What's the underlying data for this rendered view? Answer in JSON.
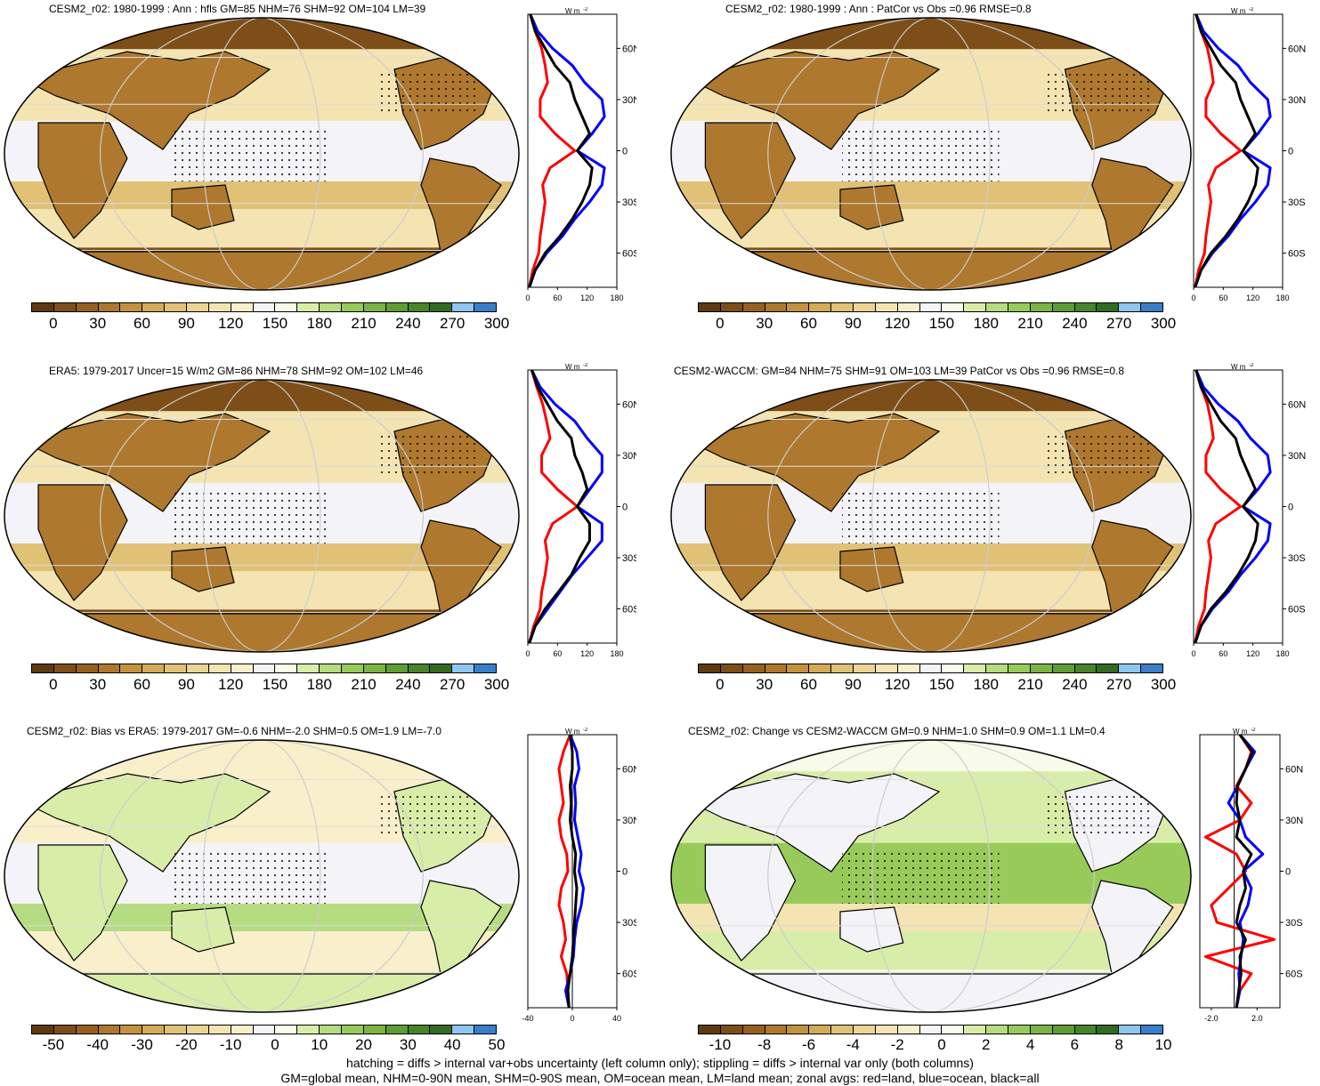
{
  "panels": [
    {
      "title": "CESM2_r02: 1980-1999 : Ann : hfls GM=85 NHM=76 SHM=92 OM=104 LM=39"
    },
    {
      "title": "CESM2_r02: 1980-1999 : Ann : PatCor vs Obs =0.96 RMSE=0.8"
    },
    {
      "title": "ERA5: 1979-2017 Uncer=15 W/m2 GM=86 NHM=78 SHM=92 OM=102 LM=46"
    },
    {
      "title": "CESM2-WACCM: GM=84 NHM=75 SHM=91 OM=103 LM=39 PatCor vs Obs =0.96 RMSE=0.8"
    },
    {
      "title": "CESM2_r02: Bias vs ERA5: 1979-2017 GM=-0.6 NHM=-2.0 SHM=0.5 OM=1.9 LM=-7.0"
    },
    {
      "title": "CESM2_r02: Change vs CESM2-WACCM GM=0.9 NHM=1.0 SHM=0.9 OM=1.1 LM=0.4"
    }
  ],
  "colorbars": {
    "absolute": {
      "labels": [
        "0",
        "30",
        "60",
        "90",
        "120",
        "150",
        "180",
        "210",
        "240",
        "270",
        "300"
      ],
      "colors": [
        "#5e3a10",
        "#7d4e18",
        "#96611f",
        "#ae782e",
        "#c3923f",
        "#d3aa57",
        "#e0c175",
        "#ebd595",
        "#f3e4b1",
        "#f9efcb",
        "#f4f4f8",
        "#f8fbe9",
        "#d8eda8",
        "#b5dc80",
        "#98ca5a",
        "#7cb443",
        "#5f9c35",
        "#47842a",
        "#336b22",
        "#8fc6f0",
        "#3a7ec8"
      ]
    },
    "bias": {
      "labels": [
        "-50",
        "-40",
        "-30",
        "-20",
        "-10",
        "0",
        "10",
        "20",
        "30",
        "40",
        "50"
      ],
      "colors": [
        "#5e3a10",
        "#7d4e18",
        "#96611f",
        "#ae782e",
        "#c3923f",
        "#d3aa57",
        "#e0c175",
        "#ebd595",
        "#f3e4b1",
        "#f9efcb",
        "#f4f4f8",
        "#f8fbe9",
        "#d8eda8",
        "#b5dc80",
        "#98ca5a",
        "#7cb443",
        "#5f9c35",
        "#47842a",
        "#336b22",
        "#8fc6f0",
        "#3a7ec8"
      ]
    },
    "change": {
      "labels": [
        "-10",
        "-8",
        "-6",
        "-4",
        "-2",
        "0",
        "2",
        "4",
        "6",
        "8",
        "10"
      ],
      "colors": [
        "#5e3a10",
        "#7d4e18",
        "#96611f",
        "#ae782e",
        "#c3923f",
        "#d3aa57",
        "#e0c175",
        "#ebd595",
        "#f3e4b1",
        "#f9efcb",
        "#f4f4f8",
        "#f8fbe9",
        "#d8eda8",
        "#b5dc80",
        "#98ca5a",
        "#7cb443",
        "#5f9c35",
        "#47842a",
        "#336b22",
        "#8fc6f0",
        "#3a7ec8"
      ]
    }
  },
  "zonal_common": {
    "unit": "W m",
    "unit_exp": "-2",
    "lat_labels": [
      "60N",
      "30N",
      "0",
      "30S",
      "60S"
    ]
  },
  "footer": {
    "line1": "hatching = diffs > internal var+obs uncertainty (left column only); stippling = diffs > internal var only (both columns)",
    "line2": "GM=global mean, NHM=0-90N mean, SHM=0-90S mean, OM=ocean mean, LM=land mean; zonal avgs: red=land, blue=ocean, black=all"
  },
  "chart_data": [
    {
      "type": "line",
      "title": "CESM2_r02: 1980-1999 : Ann : hfls GM=85 NHM=76 SHM=92 OM=104 LM=39",
      "xlabel": "W m-2",
      "xlim": [
        0,
        180
      ],
      "xticks": [
        "0",
        "60",
        "120",
        "180"
      ],
      "lat": [
        80,
        70,
        60,
        50,
        40,
        30,
        20,
        10,
        0,
        -10,
        -20,
        -30,
        -40,
        -50,
        -60,
        -70,
        -80
      ],
      "series": [
        {
          "name": "land",
          "color": "#ff0000",
          "values": [
            5,
            15,
            28,
            35,
            40,
            25,
            25,
            55,
            95,
            45,
            30,
            35,
            30,
            25,
            22,
            10,
            3
          ]
        },
        {
          "name": "ocean",
          "color": "#0000ff",
          "values": [
            5,
            20,
            50,
            90,
            115,
            150,
            155,
            130,
            100,
            155,
            150,
            125,
            95,
            70,
            38,
            15,
            3
          ]
        },
        {
          "name": "all",
          "color": "#000000",
          "values": [
            5,
            15,
            35,
            55,
            85,
            95,
            110,
            125,
            100,
            130,
            125,
            110,
            90,
            65,
            35,
            15,
            3
          ]
        }
      ]
    },
    {
      "type": "line",
      "title": "CESM2_r02: 1980-1999 : Ann : PatCor vs Obs =0.96 RMSE=0.8",
      "xlabel": "W m-2",
      "xlim": [
        0,
        180
      ],
      "xticks": [
        "0",
        "60",
        "120",
        "180"
      ],
      "lat": [
        80,
        70,
        60,
        50,
        40,
        30,
        20,
        10,
        0,
        -10,
        -20,
        -30,
        -40,
        -50,
        -60,
        -70,
        -80
      ],
      "series": [
        {
          "name": "land",
          "color": "#ff0000",
          "values": [
            5,
            15,
            28,
            35,
            40,
            25,
            25,
            55,
            95,
            45,
            30,
            35,
            30,
            25,
            22,
            10,
            3
          ]
        },
        {
          "name": "ocean",
          "color": "#0000ff",
          "values": [
            5,
            20,
            50,
            90,
            115,
            150,
            155,
            130,
            100,
            155,
            150,
            125,
            95,
            70,
            38,
            15,
            3
          ]
        },
        {
          "name": "all",
          "color": "#000000",
          "values": [
            5,
            15,
            35,
            55,
            85,
            95,
            110,
            125,
            100,
            130,
            125,
            110,
            90,
            65,
            35,
            15,
            3
          ]
        }
      ]
    },
    {
      "type": "line",
      "title": "ERA5: 1979-2017 Uncer=15 W/m2 GM=86 NHM=78 SHM=92 OM=102 LM=46",
      "xlabel": "W m-2",
      "xlim": [
        0,
        180
      ],
      "xticks": [
        "0",
        "60",
        "120",
        "180"
      ],
      "lat": [
        80,
        70,
        60,
        50,
        40,
        30,
        20,
        10,
        0,
        -10,
        -20,
        -30,
        -40,
        -50,
        -60,
        -70,
        -80
      ],
      "series": [
        {
          "name": "land",
          "color": "#ff0000",
          "values": [
            8,
            18,
            30,
            38,
            45,
            28,
            28,
            60,
            100,
            50,
            35,
            40,
            35,
            28,
            25,
            12,
            3
          ]
        },
        {
          "name": "ocean",
          "color": "#0000ff",
          "values": [
            8,
            25,
            55,
            95,
            120,
            150,
            150,
            125,
            100,
            150,
            150,
            120,
            90,
            65,
            40,
            15,
            3
          ]
        },
        {
          "name": "all",
          "color": "#000000",
          "values": [
            8,
            20,
            40,
            60,
            88,
            95,
            110,
            120,
            100,
            125,
            125,
            105,
            88,
            62,
            35,
            15,
            3
          ]
        }
      ]
    },
    {
      "type": "line",
      "title": "CESM2-WACCM: GM=84 NHM=75 SHM=91 OM=103 LM=39 PatCor vs Obs =0.96 RMSE=0.8",
      "xlabel": "W m-2",
      "xlim": [
        0,
        180
      ],
      "xticks": [
        "0",
        "60",
        "120",
        "180"
      ],
      "lat": [
        80,
        70,
        60,
        50,
        40,
        30,
        20,
        10,
        0,
        -10,
        -20,
        -30,
        -40,
        -50,
        -60,
        -70,
        -80
      ],
      "series": [
        {
          "name": "land",
          "color": "#ff0000",
          "values": [
            5,
            15,
            28,
            35,
            40,
            25,
            25,
            55,
            95,
            45,
            30,
            35,
            30,
            25,
            22,
            10,
            3
          ]
        },
        {
          "name": "ocean",
          "color": "#0000ff",
          "values": [
            5,
            20,
            50,
            90,
            115,
            150,
            155,
            130,
            100,
            155,
            150,
            125,
            95,
            70,
            38,
            15,
            3
          ]
        },
        {
          "name": "all",
          "color": "#000000",
          "values": [
            5,
            15,
            35,
            55,
            85,
            95,
            110,
            125,
            100,
            130,
            125,
            110,
            90,
            65,
            35,
            15,
            3
          ]
        }
      ]
    },
    {
      "type": "line",
      "title": "CESM2_r02: Bias vs ERA5: 1979-2017 GM=-0.6 NHM=-2.0 SHM=0.5 OM=1.9 LM=-7.0",
      "xlabel": "W m-2",
      "xlim": [
        -40,
        40
      ],
      "xticks": [
        "-40",
        "0",
        "40"
      ],
      "lat": [
        80,
        70,
        60,
        50,
        40,
        30,
        20,
        10,
        0,
        -10,
        -20,
        -30,
        -40,
        -50,
        -60,
        -70,
        -80
      ],
      "series": [
        {
          "name": "land",
          "color": "#ff0000",
          "values": [
            -2,
            -8,
            -12,
            -10,
            -8,
            -12,
            -10,
            -5,
            -4,
            -10,
            -12,
            -8,
            -6,
            -10,
            -5,
            -4,
            -3
          ]
        },
        {
          "name": "ocean",
          "color": "#0000ff",
          "values": [
            -2,
            4,
            6,
            2,
            3,
            2,
            5,
            8,
            6,
            10,
            8,
            4,
            2,
            1,
            -2,
            -6,
            -3
          ]
        },
        {
          "name": "all",
          "color": "#000000",
          "values": [
            -2,
            0,
            0,
            -2,
            -1,
            -2,
            0,
            3,
            2,
            4,
            3,
            2,
            1,
            0,
            -2,
            -4,
            -3
          ]
        }
      ]
    },
    {
      "type": "line",
      "title": "CESM2_r02: Change vs CESM2-WACCM GM=0.9 NHM=1.0 SHM=0.9 OM=1.1 LM=0.4",
      "xlabel": "W m-2",
      "xlim": [
        -3,
        4
      ],
      "xticks": [
        "-2.0",
        "2.0"
      ],
      "lat": [
        80,
        70,
        60,
        50,
        40,
        30,
        20,
        10,
        0,
        -10,
        -20,
        -30,
        -40,
        -50,
        -60,
        -70,
        -80
      ],
      "series": [
        {
          "name": "land",
          "color": "#ff0000",
          "values": [
            0.5,
            1.5,
            1.0,
            0.2,
            1.5,
            0.5,
            -2.5,
            0.2,
            1.0,
            -0.5,
            -2.0,
            -1.5,
            3.5,
            -2.5,
            1.5,
            0.5,
            0.2
          ]
        },
        {
          "name": "ocean",
          "color": "#0000ff",
          "values": [
            0.5,
            1.8,
            1.0,
            0.3,
            -0.5,
            0.5,
            1.0,
            2.5,
            0.8,
            1.5,
            1.2,
            0.5,
            0.8,
            0.6,
            0.4,
            0.5,
            0.2
          ]
        },
        {
          "name": "all",
          "color": "#000000",
          "values": [
            0.5,
            1.6,
            1.0,
            0.3,
            0.2,
            0.5,
            0.2,
            1.5,
            0.8,
            1.0,
            0.5,
            0.2,
            1.0,
            0.5,
            0.6,
            0.4,
            0.2
          ]
        }
      ]
    }
  ]
}
